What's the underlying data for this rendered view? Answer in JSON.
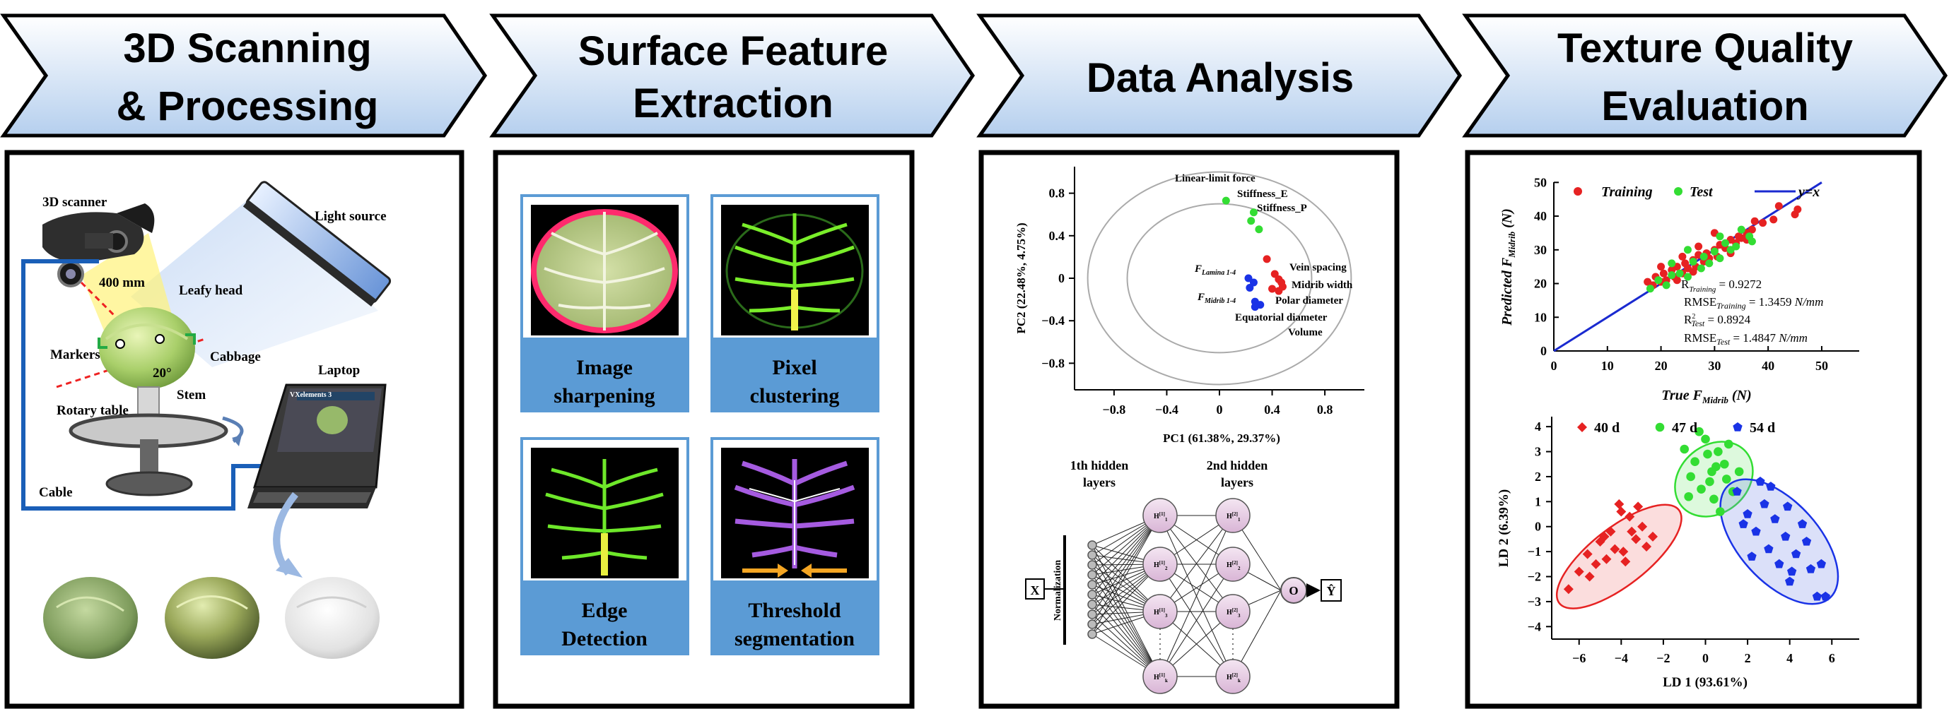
{
  "stages": [
    {
      "line1": "3D Scanning",
      "line2": "& Processing"
    },
    {
      "line1": "Surface Feature",
      "line2": "Extraction"
    },
    {
      "line1": "Data Analysis",
      "line2": ""
    },
    {
      "line1": "Texture Quality",
      "line2": "Evaluation"
    }
  ],
  "colors": {
    "arrow_top": "#ffffff",
    "arrow_bottom": "#b9d3ef",
    "step_box": "#5b9bd5",
    "panel_border": "#000000"
  },
  "scanning": {
    "labels": {
      "scanner": "3D scanner",
      "light": "Light source",
      "distance": "400 mm",
      "leafy_head": "Leafy head",
      "markers": "Markers",
      "cabbage": "Cabbage",
      "angle": "20°",
      "stem": "Stem",
      "rotary_table": "Rotary table",
      "laptop": "Laptop",
      "cable": "Cable",
      "software": "VXelements 3"
    }
  },
  "features": {
    "steps": [
      {
        "line1": "Image",
        "line2": "sharpening"
      },
      {
        "line1": "Pixel",
        "line2": "clustering"
      },
      {
        "line1": "Edge",
        "line2": "Detection"
      },
      {
        "line1": "Threshold",
        "line2": "segmentation"
      }
    ]
  },
  "chart_data": [
    {
      "type": "scatter",
      "subtype": "pca-biplot",
      "xlabel": "PC1 (61.38%, 29.37%)",
      "ylabel": "PC2 (22.48%, 4.75%)",
      "xlim": [
        -1.1,
        1.1
      ],
      "ylim": [
        -1.05,
        1.05
      ],
      "xticks": [
        -0.8,
        -0.4,
        0.0,
        0.4,
        0.8
      ],
      "yticks": [
        0.8,
        0.4,
        0.0,
        -0.4,
        -0.8
      ],
      "circles": [
        1.0,
        0.7
      ],
      "series": [
        {
          "color": "#33dd33",
          "points": [
            [
              0.05,
              0.73
            ],
            [
              0.26,
              0.62
            ],
            [
              0.3,
              0.46
            ],
            [
              0.24,
              0.54
            ]
          ]
        },
        {
          "color": "#1a33e6",
          "points": [
            [
              0.22,
              0.0
            ],
            [
              0.26,
              -0.04
            ],
            [
              0.23,
              -0.09
            ],
            [
              0.27,
              -0.22
            ],
            [
              0.31,
              -0.25
            ],
            [
              0.27,
              -0.27
            ]
          ]
        },
        {
          "color": "#e62222",
          "points": [
            [
              0.36,
              0.18
            ],
            [
              0.42,
              0.04
            ],
            [
              0.45,
              -0.01
            ],
            [
              0.47,
              -0.04
            ],
            [
              0.48,
              -0.08
            ],
            [
              0.45,
              -0.12
            ],
            [
              0.4,
              -0.1
            ]
          ]
        }
      ],
      "annotations": {
        "linear_limit": "Linear-limit force",
        "stiffness_e": "Stiffness_E",
        "stiffness_p": "Stiffness_P",
        "f_lamina": "F",
        "f_lamina_sub": "Lamina 1-4",
        "f_midrib": "F",
        "f_midrib_sub": "Midrib 1-4",
        "vein_spacing": "Vein spacing",
        "midrib_width": "Midrib width",
        "polar_diameter": "Polar diameter",
        "equatorial_diameter": "Equatorial diameter",
        "volume": "Volume"
      }
    },
    {
      "type": "scatter",
      "subtype": "regression",
      "xlabel": "True F",
      "xlabel_sub": "Midrib",
      "xlabel_unit": " (N)",
      "ylabel": "Predicted F",
      "ylabel_sub": "Midrib",
      "ylabel_unit": " (N)",
      "xlim": [
        0,
        57
      ],
      "ylim": [
        0,
        53
      ],
      "xticks": [
        0,
        10,
        20,
        30,
        40,
        50
      ],
      "yticks": [
        0,
        10,
        20,
        30,
        40,
        50
      ],
      "legend": {
        "training": "Training",
        "test": "Test",
        "line": "y=x"
      },
      "colors": {
        "training": "#e62222",
        "test": "#33dd33",
        "line": "#1a2ad0"
      },
      "line": [
        [
          0,
          0
        ],
        [
          50,
          50
        ]
      ],
      "training": [
        [
          17.5,
          20.5
        ],
        [
          18.5,
          19.5
        ],
        [
          19,
          22
        ],
        [
          20,
          20.5
        ],
        [
          20.5,
          23
        ],
        [
          21,
          21
        ],
        [
          22,
          24
        ],
        [
          22.5,
          22
        ],
        [
          23,
          25
        ],
        [
          24,
          23
        ],
        [
          24.5,
          26
        ],
        [
          25,
          24.5
        ],
        [
          26,
          27
        ],
        [
          26.5,
          25
        ],
        [
          27,
          28.5
        ],
        [
          28,
          26.5
        ],
        [
          28.5,
          29
        ],
        [
          29,
          27.5
        ],
        [
          30,
          30
        ],
        [
          30.5,
          28
        ],
        [
          31,
          31.5
        ],
        [
          32,
          30.5
        ],
        [
          33,
          33
        ],
        [
          34,
          32
        ],
        [
          34.5,
          34
        ],
        [
          35,
          33.5
        ],
        [
          36,
          35
        ],
        [
          37,
          36
        ],
        [
          39,
          38
        ],
        [
          41,
          39
        ],
        [
          42,
          43
        ],
        [
          45.5,
          42
        ],
        [
          45,
          40.5
        ],
        [
          37.5,
          38.5
        ],
        [
          24,
          28
        ],
        [
          20,
          25
        ],
        [
          30,
          35
        ],
        [
          27,
          31
        ],
        [
          33,
          29
        ],
        [
          36,
          33
        ],
        [
          23,
          21
        ],
        [
          26,
          23.5
        ]
      ],
      "test": [
        [
          18,
          18.5
        ],
        [
          19.5,
          21
        ],
        [
          21,
          19.5
        ],
        [
          22,
          22.5
        ],
        [
          23.5,
          23
        ],
        [
          25,
          22
        ],
        [
          26,
          26.5
        ],
        [
          27.5,
          24.5
        ],
        [
          28,
          28
        ],
        [
          29,
          26
        ],
        [
          30,
          29.5
        ],
        [
          31,
          27.5
        ],
        [
          32,
          32
        ],
        [
          33,
          30
        ],
        [
          34,
          31
        ],
        [
          35,
          36
        ],
        [
          36.5,
          34
        ],
        [
          37,
          32.5
        ],
        [
          25,
          30
        ],
        [
          22,
          26
        ],
        [
          31,
          34
        ]
      ],
      "stats": {
        "r2_train_label": "R",
        "r2_train_sub": "Training",
        "r2_train_value": " = 0.9272",
        "rmse_train_label": "RMSE",
        "rmse_train_sub": "Training",
        "rmse_train_value": " = 1.3459 ",
        "rmse_train_unit": "N/mm",
        "r2_test_label": "R",
        "r2_test_sup": "2",
        "r2_test_sub": "Test",
        "r2_test_value": " = 0.8924",
        "rmse_test_label": "RMSE",
        "rmse_test_sub": "Test",
        "rmse_test_value": " = 1.4847 ",
        "rmse_test_unit": "N/mm"
      }
    },
    {
      "type": "scatter",
      "subtype": "lda",
      "xlabel": "LD 1 (93.61%)",
      "ylabel": "LD 2 (6.39%)",
      "xlim": [
        -7.3,
        7.3
      ],
      "ylim": [
        -4.5,
        4.4
      ],
      "xticks": [
        -6,
        -4,
        -2,
        0,
        2,
        4,
        6
      ],
      "yticks": [
        4,
        3,
        2,
        1,
        0,
        -1,
        -2,
        -3,
        -4
      ],
      "series": [
        {
          "name": "40 d",
          "color": "#e62222",
          "shape": "diamond",
          "ellipse": {
            "cx": -4.1,
            "cy": -1.2,
            "rx": 3.6,
            "ry": 1.15,
            "angle": 38,
            "fill": "rgba(240,120,120,0.25)"
          },
          "points": [
            [
              -6.5,
              -2.5
            ],
            [
              -6,
              -1.8
            ],
            [
              -5.6,
              -1.1
            ],
            [
              -5.2,
              -1.5
            ],
            [
              -5,
              -0.6
            ],
            [
              -4.7,
              -1.3
            ],
            [
              -4.5,
              -0.2
            ],
            [
              -4.3,
              -0.9
            ],
            [
              -4,
              0.6
            ],
            [
              -3.8,
              -1.4
            ],
            [
              -3.6,
              0.4
            ],
            [
              -3.3,
              -0.5
            ],
            [
              -3,
              0.0
            ],
            [
              -2.8,
              -0.8
            ],
            [
              -4.1,
              0.9
            ],
            [
              -3.5,
              -0.2
            ],
            [
              -2.5,
              -0.4
            ],
            [
              -5.5,
              -2.0
            ],
            [
              -4.8,
              -0.4
            ],
            [
              -3.9,
              -1.0
            ],
            [
              -3.2,
              0.8
            ]
          ]
        },
        {
          "name": "47 d",
          "color": "#33dd33",
          "shape": "circle",
          "ellipse": {
            "cx": 0.4,
            "cy": 1.9,
            "rx": 2.0,
            "ry": 1.35,
            "angle": 40,
            "fill": "rgba(120,230,120,0.25)"
          },
          "points": [
            [
              -1,
              3.1
            ],
            [
              -0.5,
              2.6
            ],
            [
              0,
              3.5
            ],
            [
              0.3,
              2.2
            ],
            [
              0.6,
              3.0
            ],
            [
              1,
              1.9
            ],
            [
              -0.2,
              1.5
            ],
            [
              0.4,
              1.1
            ],
            [
              0.9,
              2.5
            ],
            [
              1.3,
              1.4
            ],
            [
              -0.7,
              2.0
            ],
            [
              0.1,
              2.9
            ],
            [
              1.6,
              2.2
            ],
            [
              0.7,
              0.6
            ],
            [
              -0.3,
              3.8
            ],
            [
              0.2,
              1.8
            ],
            [
              1.1,
              3.3
            ],
            [
              -0.8,
              1.2
            ],
            [
              0.5,
              2.4
            ]
          ]
        },
        {
          "name": "54 d",
          "color": "#1a33e6",
          "shape": "pentagon",
          "ellipse": {
            "cx": 3.5,
            "cy": -0.6,
            "rx": 3.6,
            "ry": 1.6,
            "angle": -48,
            "fill": "rgba(110,130,230,0.25)"
          },
          "points": [
            [
              1.5,
              1.4
            ],
            [
              2,
              0.5
            ],
            [
              2.4,
              -0.2
            ],
            [
              2.8,
              0.9
            ],
            [
              3,
              -0.9
            ],
            [
              3.3,
              0.3
            ],
            [
              3.5,
              -1.5
            ],
            [
              3.8,
              -0.4
            ],
            [
              4,
              -2.2
            ],
            [
              4.3,
              -1.1
            ],
            [
              4.6,
              0.1
            ],
            [
              5,
              -1.7
            ],
            [
              5.3,
              -2.8
            ],
            [
              5.7,
              -2.8
            ],
            [
              2.6,
              1.8
            ],
            [
              3.9,
              0.8
            ],
            [
              4.8,
              -0.6
            ],
            [
              2.2,
              -1.2
            ],
            [
              3.1,
              1.6
            ],
            [
              5.5,
              -1.5
            ],
            [
              4.1,
              -1.8
            ],
            [
              1.8,
              0.1
            ]
          ]
        }
      ]
    }
  ],
  "network": {
    "input": "X",
    "normalization": "Normalization",
    "layer1_title1": "1th hidden",
    "layer1_title2": "layers",
    "layer2_title1": "2nd hidden",
    "layer2_title2": "layers",
    "layer1_nodes": [
      {
        "base": "H",
        "sup": "[1]",
        "sub": "1"
      },
      {
        "base": "H",
        "sup": "[1]",
        "sub": "2"
      },
      {
        "base": "H",
        "sup": "[1]",
        "sub": "3"
      },
      {
        "base": "H",
        "sup": "[1]",
        "sub": "k"
      }
    ],
    "layer2_nodes": [
      {
        "base": "H",
        "sup": "[2]",
        "sub": "1"
      },
      {
        "base": "H",
        "sup": "[2]",
        "sub": "2"
      },
      {
        "base": "H",
        "sup": "[2]",
        "sub": "3"
      },
      {
        "base": "H",
        "sup": "[2]",
        "sub": "k"
      }
    ],
    "output_node": "O",
    "output": "Ŷ"
  }
}
